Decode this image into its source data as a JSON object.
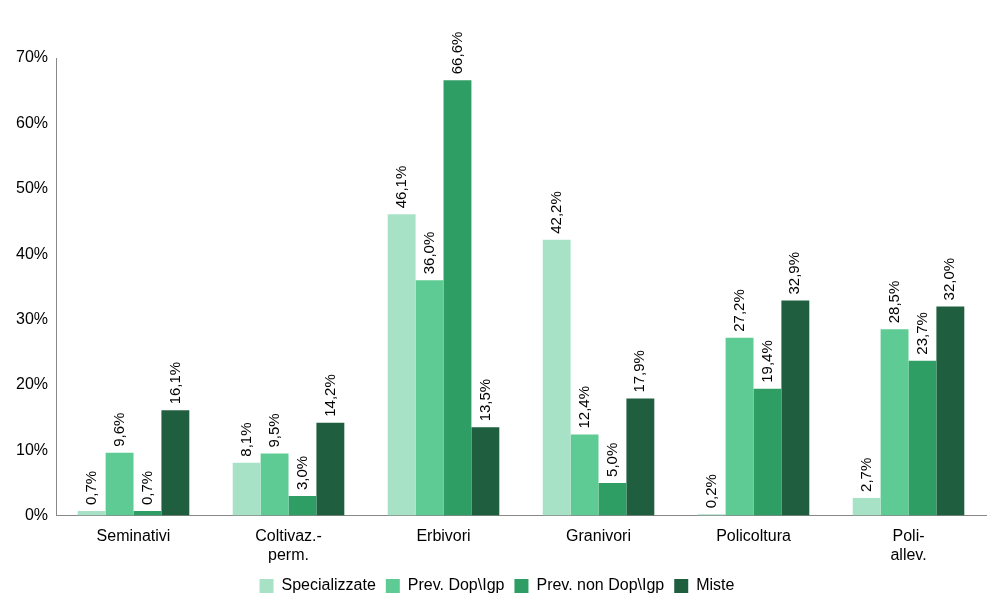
{
  "chart_data": {
    "type": "bar",
    "categories": [
      "Seminativi",
      "Coltivaz.-perm.",
      "Erbivori",
      "Granivori",
      "Policoltura",
      "Poli-allev."
    ],
    "series": [
      {
        "name": "Specializzate",
        "color": "#a8e2c6",
        "values": [
          0.7,
          8.1,
          46.1,
          42.2,
          0.2,
          2.7
        ],
        "value_labels": [
          "0,7%",
          "8,1%",
          "46,1%",
          "42,2%",
          "0,2%",
          "2,7%"
        ]
      },
      {
        "name": "Prev. Dop\\Igp",
        "color": "#5ecb94",
        "values": [
          9.6,
          9.5,
          36.0,
          12.4,
          27.2,
          28.5
        ],
        "value_labels": [
          "9,6%",
          "9,5%",
          "36,0%",
          "12,4%",
          "27,2%",
          "28,5%"
        ]
      },
      {
        "name": "Prev. non Dop\\Igp",
        "color": "#2f9e64",
        "values": [
          0.7,
          3.0,
          66.6,
          5.0,
          19.4,
          23.7
        ],
        "value_labels": [
          "0,7%",
          "3,0%",
          "66,6%",
          "5,0%",
          "19,4%",
          "23,7%"
        ]
      },
      {
        "name": "Miste",
        "color": "#1f5f3f",
        "values": [
          16.1,
          14.2,
          13.5,
          17.9,
          32.9,
          32.0
        ],
        "value_labels": [
          "16,1%",
          "14,2%",
          "13,5%",
          "17,9%",
          "32,9%",
          "32,0%"
        ]
      }
    ],
    "ylim": [
      0,
      70
    ],
    "yticks": [
      {
        "value": 0,
        "label": "0%"
      },
      {
        "value": 10,
        "label": "10%"
      },
      {
        "value": 20,
        "label": "20%"
      },
      {
        "value": 30,
        "label": "30%"
      },
      {
        "value": 40,
        "label": "40%"
      },
      {
        "value": 50,
        "label": "50%"
      },
      {
        "value": 60,
        "label": "60%"
      },
      {
        "value": 70,
        "label": "70%"
      }
    ],
    "grid": false,
    "legend": "bottom"
  }
}
